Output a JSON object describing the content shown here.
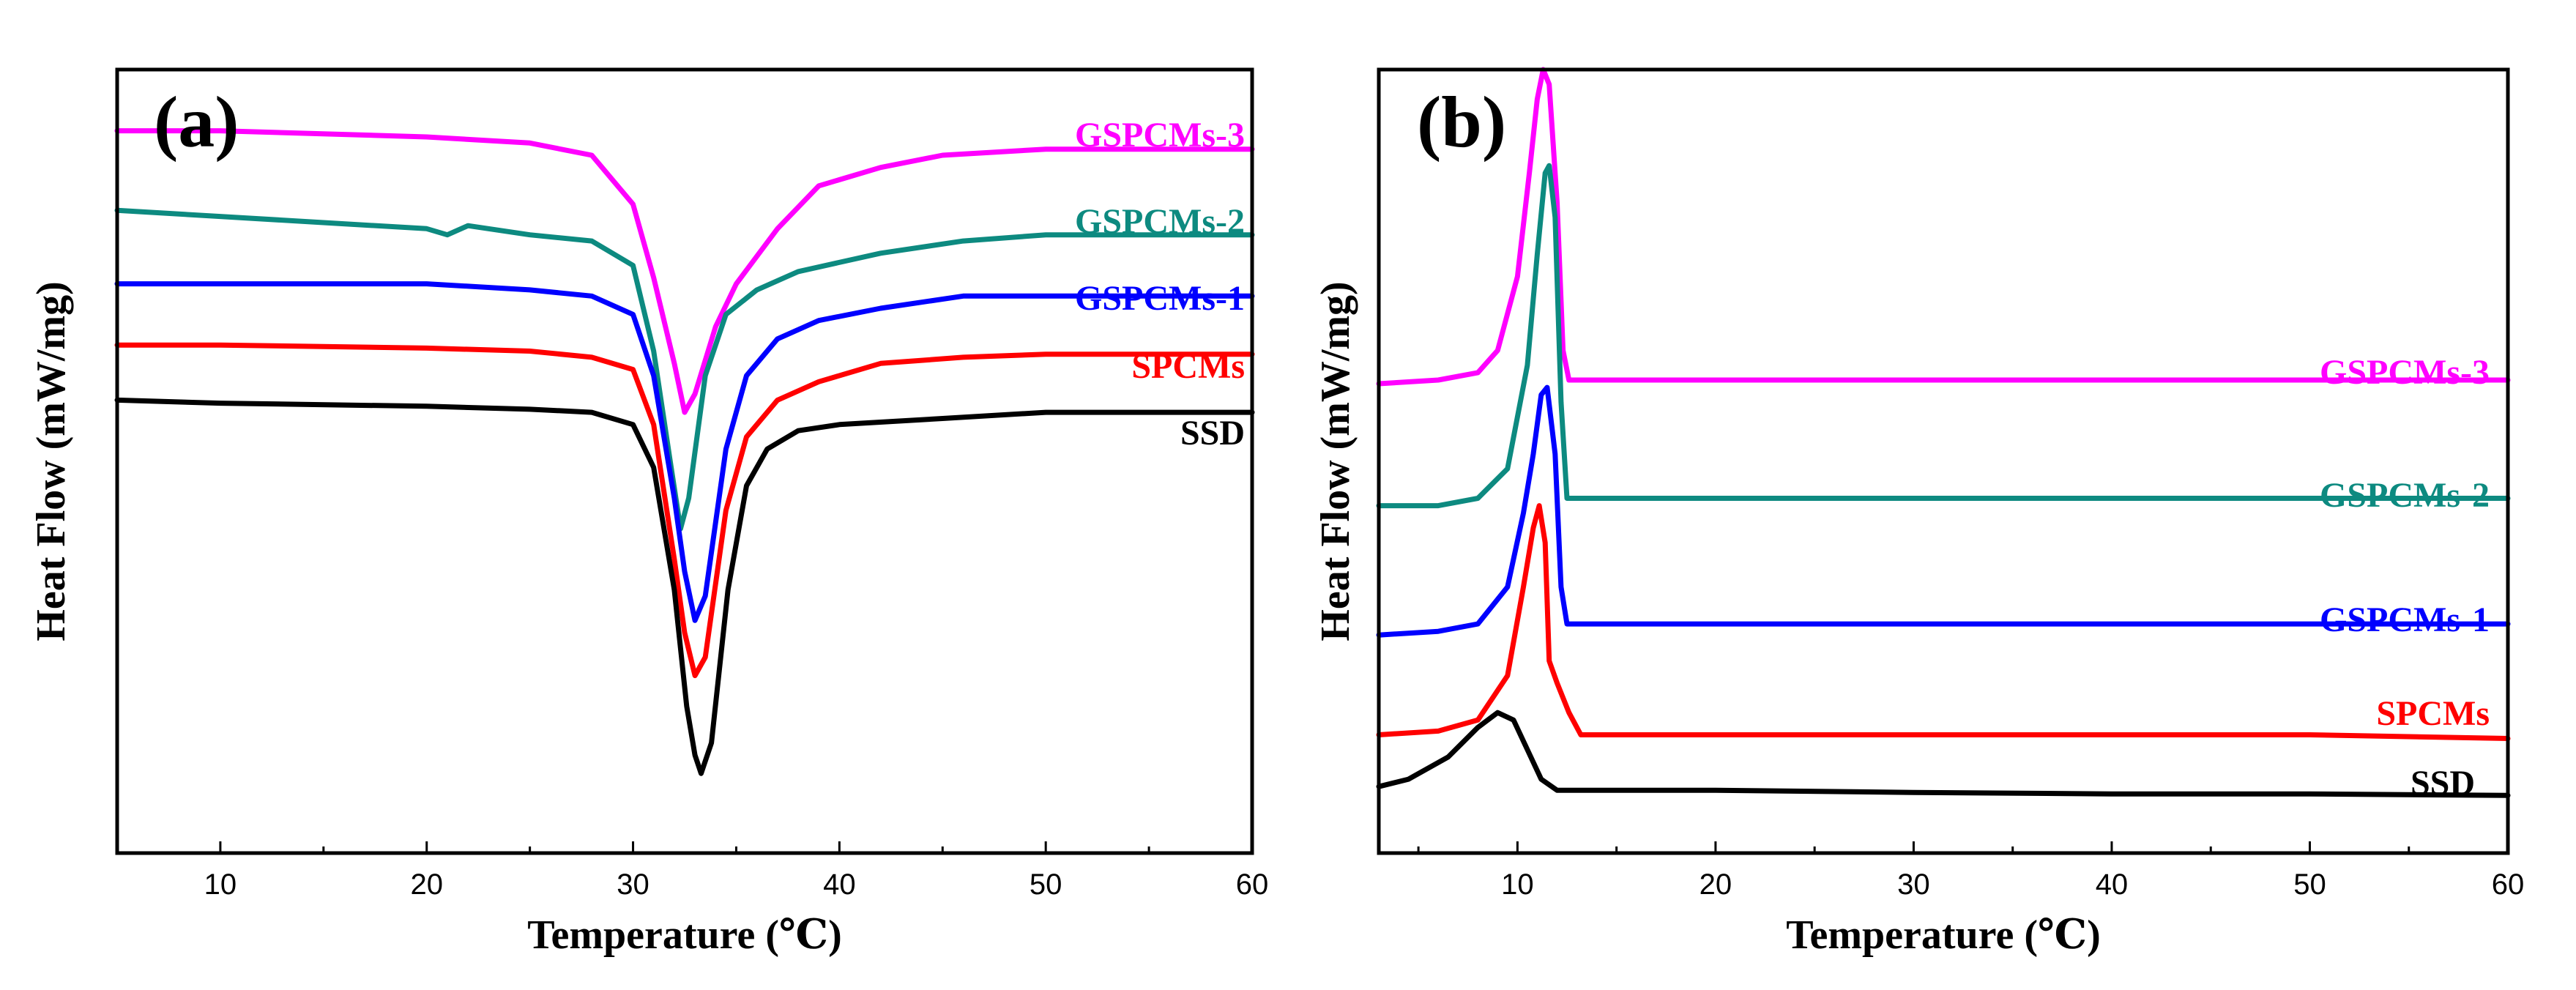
{
  "chart_data": [
    {
      "type": "line",
      "panel_label": "(a)",
      "xlabel": "Temperature (℃)",
      "ylabel": "Heat Flow (mW/mg)",
      "xlim": [
        5,
        60
      ],
      "xticks": [
        10,
        20,
        30,
        40,
        50,
        60
      ],
      "y_ticks_shown": false,
      "grid": false,
      "legend": "inline labels at right of curves",
      "series": [
        {
          "name": "GSPCMs-3",
          "color": "#ff00ff",
          "points": [
            [
              5,
              1.1
            ],
            [
              10,
              1.1
            ],
            [
              20,
              1.09
            ],
            [
              25,
              1.08
            ],
            [
              28,
              1.06
            ],
            [
              30,
              0.98
            ],
            [
              31,
              0.86
            ],
            [
              32,
              0.72
            ],
            [
              32.5,
              0.64
            ],
            [
              33,
              0.67
            ],
            [
              34,
              0.78
            ],
            [
              35,
              0.85
            ],
            [
              37,
              0.94
            ],
            [
              39,
              1.01
            ],
            [
              42,
              1.04
            ],
            [
              45,
              1.06
            ],
            [
              50,
              1.07
            ],
            [
              55,
              1.07
            ],
            [
              60,
              1.07
            ]
          ]
        },
        {
          "name": "GSPCMs-2",
          "color": "#0d8a80",
          "points": [
            [
              5,
              0.97
            ],
            [
              10,
              0.96
            ],
            [
              15,
              0.95
            ],
            [
              20,
              0.94
            ],
            [
              21,
              0.93
            ],
            [
              22,
              0.945
            ],
            [
              25,
              0.93
            ],
            [
              28,
              0.92
            ],
            [
              30,
              0.88
            ],
            [
              31,
              0.74
            ],
            [
              31.8,
              0.56
            ],
            [
              32.3,
              0.45
            ],
            [
              32.7,
              0.5
            ],
            [
              33.5,
              0.7
            ],
            [
              34.5,
              0.8
            ],
            [
              36,
              0.84
            ],
            [
              38,
              0.87
            ],
            [
              42,
              0.9
            ],
            [
              46,
              0.92
            ],
            [
              50,
              0.93
            ],
            [
              55,
              0.93
            ],
            [
              60,
              0.93
            ]
          ]
        },
        {
          "name": "GSPCMs-1",
          "color": "#0000ff",
          "points": [
            [
              5,
              0.85
            ],
            [
              10,
              0.85
            ],
            [
              20,
              0.85
            ],
            [
              25,
              0.84
            ],
            [
              28,
              0.83
            ],
            [
              30,
              0.8
            ],
            [
              31,
              0.7
            ],
            [
              32,
              0.5
            ],
            [
              32.5,
              0.38
            ],
            [
              33,
              0.3
            ],
            [
              33.5,
              0.34
            ],
            [
              34.5,
              0.58
            ],
            [
              35.5,
              0.7
            ],
            [
              37,
              0.76
            ],
            [
              39,
              0.79
            ],
            [
              42,
              0.81
            ],
            [
              46,
              0.83
            ],
            [
              50,
              0.83
            ],
            [
              55,
              0.83
            ],
            [
              60,
              0.83
            ]
          ]
        },
        {
          "name": "SPCMs",
          "color": "#ff0000",
          "points": [
            [
              5,
              0.75
            ],
            [
              10,
              0.75
            ],
            [
              20,
              0.745
            ],
            [
              25,
              0.74
            ],
            [
              28,
              0.73
            ],
            [
              30,
              0.71
            ],
            [
              31,
              0.62
            ],
            [
              32,
              0.4
            ],
            [
              32.5,
              0.28
            ],
            [
              33,
              0.21
            ],
            [
              33.5,
              0.24
            ],
            [
              34.5,
              0.48
            ],
            [
              35.5,
              0.6
            ],
            [
              37,
              0.66
            ],
            [
              39,
              0.69
            ],
            [
              42,
              0.72
            ],
            [
              46,
              0.73
            ],
            [
              50,
              0.735
            ],
            [
              55,
              0.735
            ],
            [
              60,
              0.735
            ]
          ]
        },
        {
          "name": "SSD",
          "color": "#000000",
          "points": [
            [
              5,
              0.66
            ],
            [
              10,
              0.655
            ],
            [
              20,
              0.65
            ],
            [
              25,
              0.645
            ],
            [
              28,
              0.64
            ],
            [
              30,
              0.62
            ],
            [
              31,
              0.55
            ],
            [
              32,
              0.35
            ],
            [
              32.6,
              0.16
            ],
            [
              33,
              0.08
            ],
            [
              33.3,
              0.05
            ],
            [
              33.8,
              0.1
            ],
            [
              34.6,
              0.35
            ],
            [
              35.5,
              0.52
            ],
            [
              36.5,
              0.58
            ],
            [
              38,
              0.61
            ],
            [
              40,
              0.62
            ],
            [
              45,
              0.63
            ],
            [
              50,
              0.64
            ],
            [
              55,
              0.64
            ],
            [
              60,
              0.64
            ]
          ]
        }
      ]
    },
    {
      "type": "line",
      "panel_label": "(b)",
      "xlabel": "Temperature (℃)",
      "ylabel": "Heat Flow (mW/mg)",
      "xlim": [
        3,
        60
      ],
      "xticks": [
        10,
        20,
        30,
        40,
        50,
        60
      ],
      "y_ticks_shown": false,
      "grid": false,
      "legend": "inline labels at right of curves",
      "series": [
        {
          "name": "GSPCMs-3",
          "color": "#ff00ff",
          "points": [
            [
              3,
              0.575
            ],
            [
              6,
              0.58
            ],
            [
              8,
              0.59
            ],
            [
              9,
              0.62
            ],
            [
              10,
              0.72
            ],
            [
              10.6,
              0.86
            ],
            [
              11,
              0.96
            ],
            [
              11.3,
              1.0
            ],
            [
              11.6,
              0.98
            ],
            [
              12,
              0.82
            ],
            [
              12.3,
              0.62
            ],
            [
              12.6,
              0.58
            ],
            [
              14,
              0.58
            ],
            [
              20,
              0.58
            ],
            [
              30,
              0.58
            ],
            [
              40,
              0.58
            ],
            [
              50,
              0.58
            ],
            [
              60,
              0.58
            ]
          ]
        },
        {
          "name": "GSPCMs-2",
          "color": "#0d8a80",
          "points": [
            [
              3,
              0.41
            ],
            [
              6,
              0.41
            ],
            [
              8,
              0.42
            ],
            [
              9.5,
              0.46
            ],
            [
              10.5,
              0.6
            ],
            [
              11,
              0.75
            ],
            [
              11.4,
              0.86
            ],
            [
              11.6,
              0.87
            ],
            [
              11.9,
              0.8
            ],
            [
              12.2,
              0.55
            ],
            [
              12.5,
              0.42
            ],
            [
              13,
              0.42
            ],
            [
              20,
              0.42
            ],
            [
              30,
              0.42
            ],
            [
              40,
              0.42
            ],
            [
              50,
              0.42
            ],
            [
              60,
              0.42
            ]
          ]
        },
        {
          "name": "GSPCMs-1",
          "color": "#0000ff",
          "points": [
            [
              3,
              0.235
            ],
            [
              6,
              0.24
            ],
            [
              8,
              0.25
            ],
            [
              9.5,
              0.3
            ],
            [
              10.3,
              0.4
            ],
            [
              10.8,
              0.48
            ],
            [
              11.2,
              0.56
            ],
            [
              11.5,
              0.57
            ],
            [
              11.9,
              0.48
            ],
            [
              12.2,
              0.3
            ],
            [
              12.5,
              0.25
            ],
            [
              13,
              0.25
            ],
            [
              20,
              0.25
            ],
            [
              30,
              0.25
            ],
            [
              40,
              0.25
            ],
            [
              50,
              0.25
            ],
            [
              60,
              0.25
            ]
          ]
        },
        {
          "name": "SPCMs",
          "color": "#ff0000",
          "points": [
            [
              3,
              0.1
            ],
            [
              6,
              0.105
            ],
            [
              8,
              0.12
            ],
            [
              9.5,
              0.18
            ],
            [
              10.3,
              0.3
            ],
            [
              10.8,
              0.38
            ],
            [
              11.1,
              0.41
            ],
            [
              11.4,
              0.36
            ],
            [
              11.6,
              0.2
            ],
            [
              12,
              0.17
            ],
            [
              12.6,
              0.13
            ],
            [
              13.2,
              0.1
            ],
            [
              20,
              0.1
            ],
            [
              30,
              0.1
            ],
            [
              40,
              0.1
            ],
            [
              50,
              0.1
            ],
            [
              60,
              0.095
            ]
          ]
        },
        {
          "name": "SSD",
          "color": "#000000",
          "points": [
            [
              3,
              0.03
            ],
            [
              4.5,
              0.04
            ],
            [
              6.5,
              0.07
            ],
            [
              8,
              0.11
            ],
            [
              9,
              0.13
            ],
            [
              9.8,
              0.12
            ],
            [
              10.5,
              0.08
            ],
            [
              11.2,
              0.04
            ],
            [
              12,
              0.025
            ],
            [
              14,
              0.025
            ],
            [
              20,
              0.025
            ],
            [
              30,
              0.022
            ],
            [
              40,
              0.02
            ],
            [
              50,
              0.02
            ],
            [
              60,
              0.018
            ]
          ]
        }
      ]
    }
  ]
}
